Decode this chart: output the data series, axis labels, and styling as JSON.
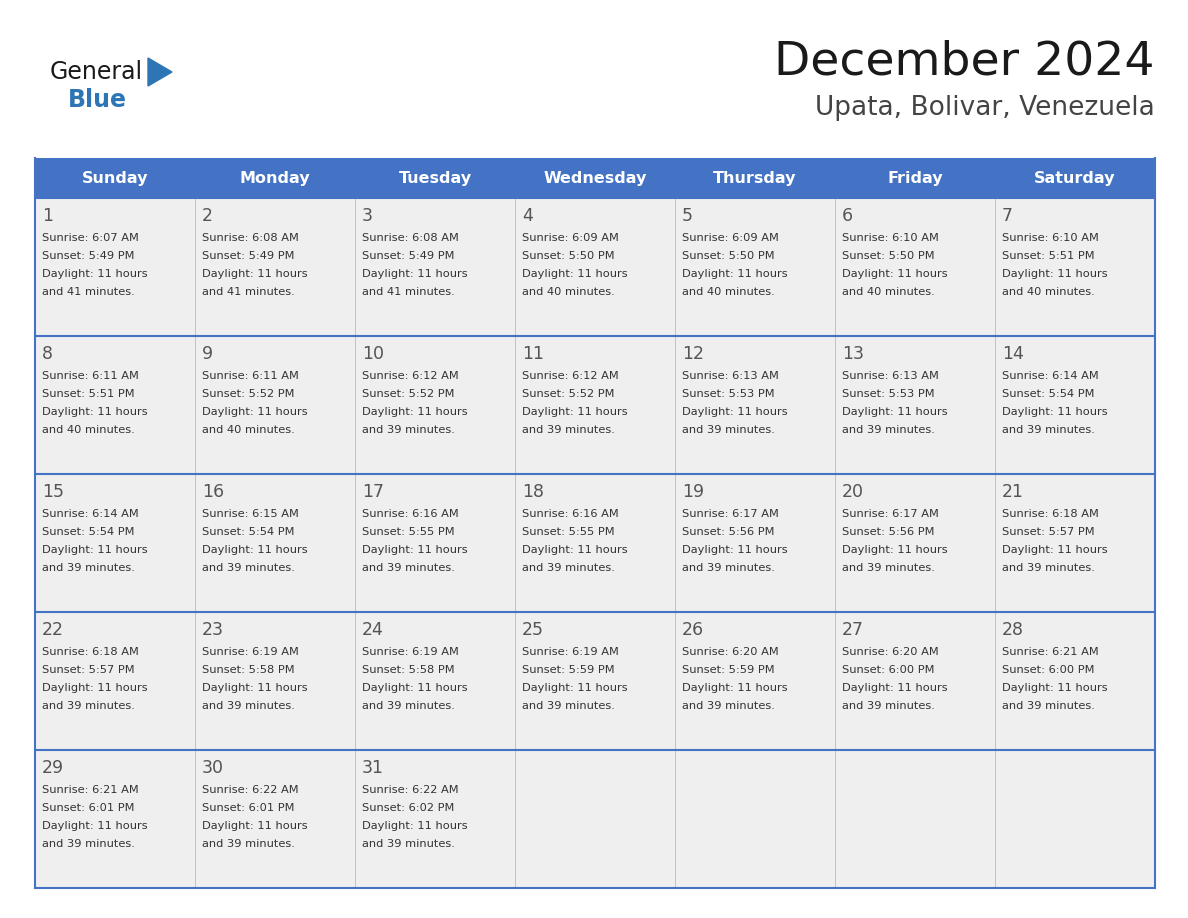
{
  "title": "December 2024",
  "subtitle": "Upata, Bolivar, Venezuela",
  "days_of_week": [
    "Sunday",
    "Monday",
    "Tuesday",
    "Wednesday",
    "Thursday",
    "Friday",
    "Saturday"
  ],
  "header_bg_color": "#4472C4",
  "header_text_color": "#FFFFFF",
  "cell_bg_color": "#EFEFEF",
  "grid_line_color": "#4472C4",
  "day_number_color": "#555555",
  "cell_text_color": "#333333",
  "title_color": "#1a1a1a",
  "subtitle_color": "#444444",
  "calendar_data": [
    [
      {
        "day": 1,
        "sunrise": "6:07 AM",
        "sunset": "5:49 PM",
        "daylight_h": "11 hours",
        "daylight_m": "and 41 minutes."
      },
      {
        "day": 2,
        "sunrise": "6:08 AM",
        "sunset": "5:49 PM",
        "daylight_h": "11 hours",
        "daylight_m": "and 41 minutes."
      },
      {
        "day": 3,
        "sunrise": "6:08 AM",
        "sunset": "5:49 PM",
        "daylight_h": "11 hours",
        "daylight_m": "and 41 minutes."
      },
      {
        "day": 4,
        "sunrise": "6:09 AM",
        "sunset": "5:50 PM",
        "daylight_h": "11 hours",
        "daylight_m": "and 40 minutes."
      },
      {
        "day": 5,
        "sunrise": "6:09 AM",
        "sunset": "5:50 PM",
        "daylight_h": "11 hours",
        "daylight_m": "and 40 minutes."
      },
      {
        "day": 6,
        "sunrise": "6:10 AM",
        "sunset": "5:50 PM",
        "daylight_h": "11 hours",
        "daylight_m": "and 40 minutes."
      },
      {
        "day": 7,
        "sunrise": "6:10 AM",
        "sunset": "5:51 PM",
        "daylight_h": "11 hours",
        "daylight_m": "and 40 minutes."
      }
    ],
    [
      {
        "day": 8,
        "sunrise": "6:11 AM",
        "sunset": "5:51 PM",
        "daylight_h": "11 hours",
        "daylight_m": "and 40 minutes."
      },
      {
        "day": 9,
        "sunrise": "6:11 AM",
        "sunset": "5:52 PM",
        "daylight_h": "11 hours",
        "daylight_m": "and 40 minutes."
      },
      {
        "day": 10,
        "sunrise": "6:12 AM",
        "sunset": "5:52 PM",
        "daylight_h": "11 hours",
        "daylight_m": "and 39 minutes."
      },
      {
        "day": 11,
        "sunrise": "6:12 AM",
        "sunset": "5:52 PM",
        "daylight_h": "11 hours",
        "daylight_m": "and 39 minutes."
      },
      {
        "day": 12,
        "sunrise": "6:13 AM",
        "sunset": "5:53 PM",
        "daylight_h": "11 hours",
        "daylight_m": "and 39 minutes."
      },
      {
        "day": 13,
        "sunrise": "6:13 AM",
        "sunset": "5:53 PM",
        "daylight_h": "11 hours",
        "daylight_m": "and 39 minutes."
      },
      {
        "day": 14,
        "sunrise": "6:14 AM",
        "sunset": "5:54 PM",
        "daylight_h": "11 hours",
        "daylight_m": "and 39 minutes."
      }
    ],
    [
      {
        "day": 15,
        "sunrise": "6:14 AM",
        "sunset": "5:54 PM",
        "daylight_h": "11 hours",
        "daylight_m": "and 39 minutes."
      },
      {
        "day": 16,
        "sunrise": "6:15 AM",
        "sunset": "5:54 PM",
        "daylight_h": "11 hours",
        "daylight_m": "and 39 minutes."
      },
      {
        "day": 17,
        "sunrise": "6:16 AM",
        "sunset": "5:55 PM",
        "daylight_h": "11 hours",
        "daylight_m": "and 39 minutes."
      },
      {
        "day": 18,
        "sunrise": "6:16 AM",
        "sunset": "5:55 PM",
        "daylight_h": "11 hours",
        "daylight_m": "and 39 minutes."
      },
      {
        "day": 19,
        "sunrise": "6:17 AM",
        "sunset": "5:56 PM",
        "daylight_h": "11 hours",
        "daylight_m": "and 39 minutes."
      },
      {
        "day": 20,
        "sunrise": "6:17 AM",
        "sunset": "5:56 PM",
        "daylight_h": "11 hours",
        "daylight_m": "and 39 minutes."
      },
      {
        "day": 21,
        "sunrise": "6:18 AM",
        "sunset": "5:57 PM",
        "daylight_h": "11 hours",
        "daylight_m": "and 39 minutes."
      }
    ],
    [
      {
        "day": 22,
        "sunrise": "6:18 AM",
        "sunset": "5:57 PM",
        "daylight_h": "11 hours",
        "daylight_m": "and 39 minutes."
      },
      {
        "day": 23,
        "sunrise": "6:19 AM",
        "sunset": "5:58 PM",
        "daylight_h": "11 hours",
        "daylight_m": "and 39 minutes."
      },
      {
        "day": 24,
        "sunrise": "6:19 AM",
        "sunset": "5:58 PM",
        "daylight_h": "11 hours",
        "daylight_m": "and 39 minutes."
      },
      {
        "day": 25,
        "sunrise": "6:19 AM",
        "sunset": "5:59 PM",
        "daylight_h": "11 hours",
        "daylight_m": "and 39 minutes."
      },
      {
        "day": 26,
        "sunrise": "6:20 AM",
        "sunset": "5:59 PM",
        "daylight_h": "11 hours",
        "daylight_m": "and 39 minutes."
      },
      {
        "day": 27,
        "sunrise": "6:20 AM",
        "sunset": "6:00 PM",
        "daylight_h": "11 hours",
        "daylight_m": "and 39 minutes."
      },
      {
        "day": 28,
        "sunrise": "6:21 AM",
        "sunset": "6:00 PM",
        "daylight_h": "11 hours",
        "daylight_m": "and 39 minutes."
      }
    ],
    [
      {
        "day": 29,
        "sunrise": "6:21 AM",
        "sunset": "6:01 PM",
        "daylight_h": "11 hours",
        "daylight_m": "and 39 minutes."
      },
      {
        "day": 30,
        "sunrise": "6:22 AM",
        "sunset": "6:01 PM",
        "daylight_h": "11 hours",
        "daylight_m": "and 39 minutes."
      },
      {
        "day": 31,
        "sunrise": "6:22 AM",
        "sunset": "6:02 PM",
        "daylight_h": "11 hours",
        "daylight_m": "and 39 minutes."
      },
      null,
      null,
      null,
      null
    ]
  ]
}
